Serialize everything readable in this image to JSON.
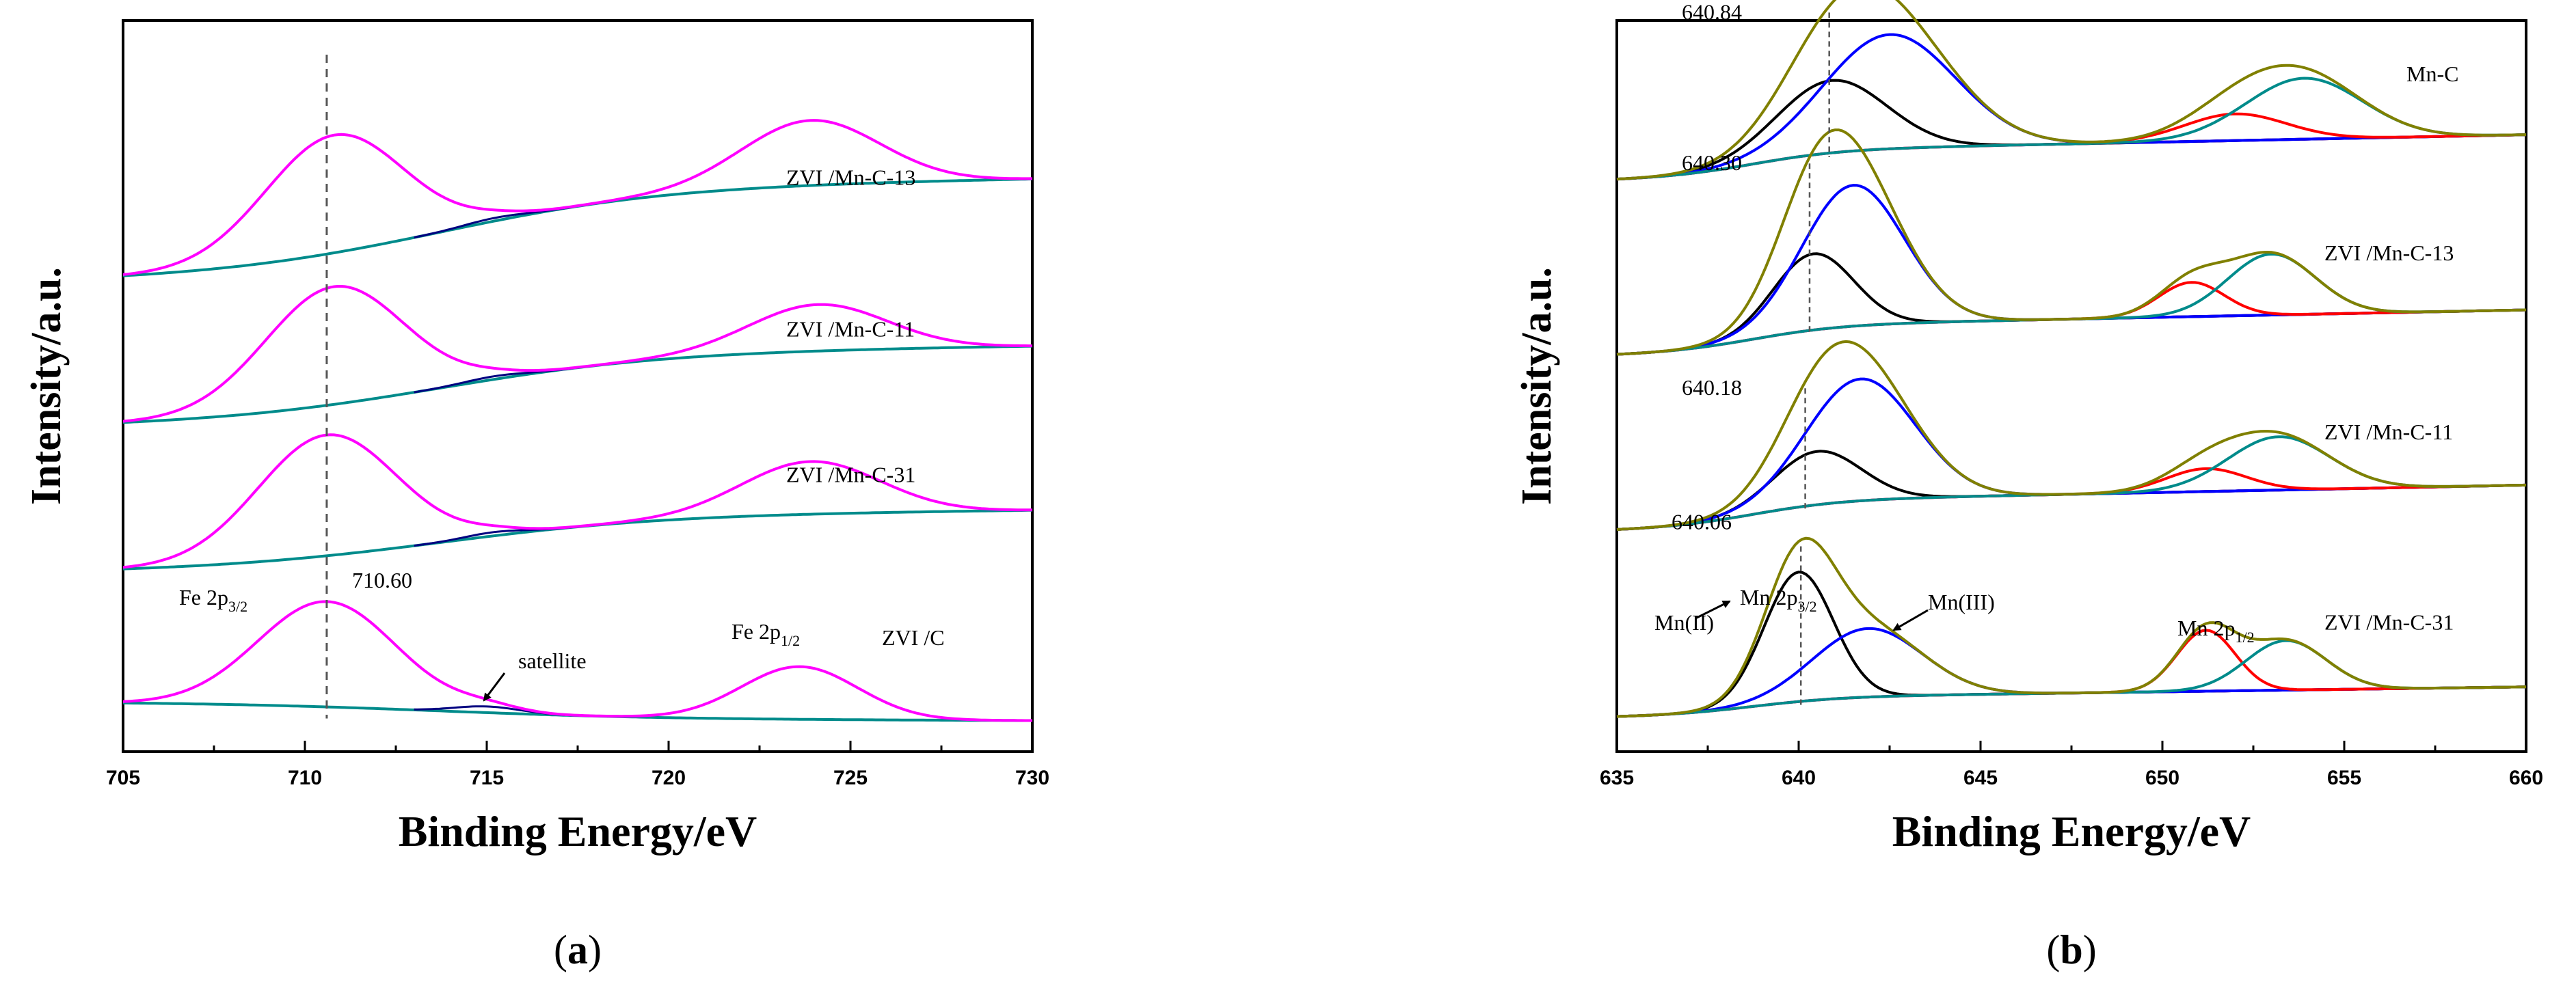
{
  "chart_data": [
    {
      "id": "a",
      "type": "line",
      "panel_label": "a",
      "xlabel": "Binding Energy/eV",
      "ylabel": "Intensity/a.u.",
      "xlim": [
        705,
        730
      ],
      "xticks": [
        705,
        710,
        715,
        720,
        725,
        730
      ],
      "yticks_shown": false,
      "spectra": [
        {
          "name": "ZVI /Mn-C-13",
          "baseline_start": 6.8,
          "baseline_end": 8.45,
          "peaks": [
            {
              "center": 710.8,
              "height": 1.9,
              "width": 1.9
            },
            {
              "center": 723.9,
              "height": 1.05,
              "width": 1.9
            },
            {
              "center": 715.2,
              "height": 0.05,
              "width": 0.8
            }
          ]
        },
        {
          "name": "ZVI /Mn-C-11",
          "baseline_start": 4.45,
          "baseline_end": 5.75,
          "peaks": [
            {
              "center": 710.8,
              "height": 1.9,
              "width": 1.9
            },
            {
              "center": 724.1,
              "height": 0.75,
              "width": 1.9
            },
            {
              "center": 715.2,
              "height": 0.05,
              "width": 0.8
            }
          ]
        },
        {
          "name": "ZVI /Mn-C-31",
          "baseline_start": 2.1,
          "baseline_end": 3.1,
          "peaks": [
            {
              "center": 710.6,
              "height": 1.95,
              "width": 1.9
            },
            {
              "center": 723.9,
              "height": 0.85,
              "width": 1.9
            },
            {
              "center": 715.2,
              "height": 0.06,
              "width": 0.8
            }
          ]
        },
        {
          "name": "ZVI /C",
          "baseline_start": 0.0,
          "baseline_end": -0.3,
          "peaks": [
            {
              "center": 710.6,
              "height": 1.7,
              "width": 1.9
            },
            {
              "center": 723.6,
              "height": 0.85,
              "width": 1.6
            },
            {
              "center": 715.0,
              "height": 0.1,
              "width": 0.9
            }
          ]
        }
      ],
      "reference_line": {
        "x": 710.6,
        "label": "710.60"
      },
      "annotations": {
        "fe_2p32_prefix": "Fe 2p",
        "fe_2p32_sub": "3/2",
        "fe_2p12_prefix": "Fe 2p",
        "fe_2p12_sub": "1/2",
        "satellite": "satellite"
      },
      "colors": {
        "envelope": "#FF00FF",
        "background": "#008B8B",
        "satellite": "#000080",
        "reference": "#555555"
      }
    },
    {
      "id": "b",
      "type": "line",
      "panel_label": "b",
      "xlabel": "Binding Energy/eV",
      "ylabel": "Intensity/a.u.",
      "xlim": [
        635,
        660
      ],
      "xticks": [
        635,
        640,
        645,
        650,
        655,
        660
      ],
      "yticks_shown": false,
      "spectra": [
        {
          "name": "Mn-C",
          "peak_position": "640.84",
          "ref_x": 640.84,
          "baseline_start": 7.0,
          "baseline_end": 7.6,
          "mn2": {
            "center": 640.9,
            "height": 0.95,
            "width": 1.5
          },
          "mn3": {
            "center": 642.5,
            "height": 1.5,
            "width": 1.8
          },
          "red": {
            "center": 652.0,
            "height": 0.35,
            "width": 1.4
          },
          "teal": {
            "center": 653.9,
            "height": 0.8,
            "width": 1.6
          }
        },
        {
          "name": "ZVI /Mn-C-13",
          "peak_position": "640.30",
          "ref_x": 640.3,
          "baseline_start": 4.7,
          "baseline_end": 5.3,
          "mn2": {
            "center": 640.4,
            "height": 1.0,
            "width": 1.1
          },
          "mn3": {
            "center": 641.5,
            "height": 1.85,
            "width": 1.4
          },
          "red": {
            "center": 650.8,
            "height": 0.45,
            "width": 0.9
          },
          "teal": {
            "center": 653.0,
            "height": 0.8,
            "width": 1.2
          }
        },
        {
          "name": "ZVI /Mn-C-11",
          "peak_position": "640.18",
          "ref_x": 640.18,
          "baseline_start": 2.4,
          "baseline_end": 3.0,
          "mn2": {
            "center": 640.5,
            "height": 0.7,
            "width": 1.2
          },
          "mn3": {
            "center": 641.7,
            "height": 1.6,
            "width": 1.5
          },
          "red": {
            "center": 651.2,
            "height": 0.3,
            "width": 1.1
          },
          "teal": {
            "center": 653.2,
            "height": 0.7,
            "width": 1.4
          }
        },
        {
          "name": "ZVI /Mn-C-31",
          "peak_position": "640.06",
          "ref_x": 640.06,
          "baseline_start": 0.0,
          "baseline_end": 0.35,
          "mn2": {
            "center": 640.0,
            "height": 1.7,
            "width": 0.95
          },
          "mn3": {
            "center": 641.9,
            "height": 0.9,
            "width": 1.5
          },
          "red": {
            "center": 651.2,
            "height": 0.8,
            "width": 0.8
          },
          "teal": {
            "center": 653.4,
            "height": 0.65,
            "width": 1.1
          }
        }
      ],
      "annotations": {
        "mn_2p32_prefix": "Mn 2p",
        "mn_2p32_sub": "3/2",
        "mn_2p12_prefix": "Mn 2p",
        "mn_2p12_sub": "1/2",
        "mn2": "Mn(II)",
        "mn3": "Mn(III)"
      },
      "colors": {
        "envelope": "#808000",
        "mn2": "#000000",
        "mn3": "#0000FF",
        "red": "#FF0000",
        "teal": "#008B8B",
        "background": "#FF00FF",
        "reference": "#555555"
      }
    }
  ]
}
